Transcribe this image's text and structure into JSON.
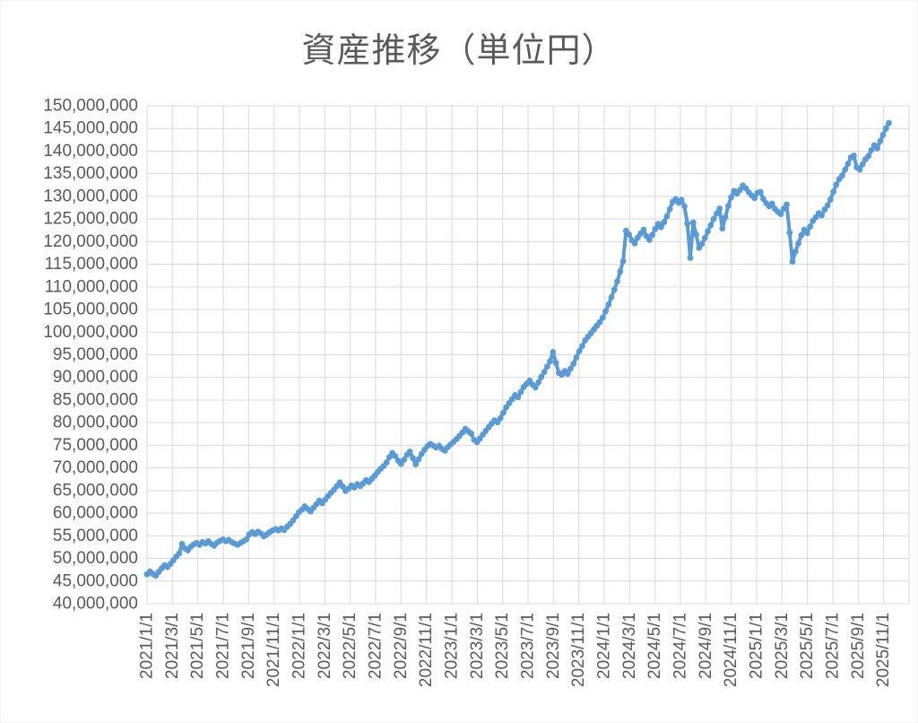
{
  "chart": {
    "title": "資産推移（単位円）"
  },
  "colors": {
    "series": "#5B9BD5",
    "grid": "#D9D9D9",
    "text": "#595959",
    "background": "#FFFFFF"
  },
  "chart_data": {
    "type": "line",
    "title": "資産推移（単位円）",
    "unit": "JPY",
    "grid": true,
    "legend": false,
    "markers": true,
    "series_color": "#5B9BD5",
    "y_axis": {
      "min": 40000000,
      "max": 150000000,
      "step": 5000000,
      "tick_labels": [
        "150,000,000",
        "145,000,000",
        "140,000,000",
        "135,000,000",
        "130,000,000",
        "125,000,000",
        "120,000,000",
        "115,000,000",
        "110,000,000",
        "105,000,000",
        "100,000,000",
        "95,000,000",
        "90,000,000",
        "85,000,000",
        "80,000,000",
        "75,000,000",
        "70,000,000",
        "65,000,000",
        "60,000,000",
        "55,000,000",
        "50,000,000",
        "45,000,000",
        "40,000,000"
      ]
    },
    "x_axis": {
      "tick_interval_months": 2,
      "months_total": 60,
      "tick_labels": [
        "2021/1/1",
        "2021/3/1",
        "2021/5/1",
        "2021/7/1",
        "2021/9/1",
        "2021/11/1",
        "2022/1/1",
        "2022/3/1",
        "2022/5/1",
        "2022/7/1",
        "2022/9/1",
        "2022/11/1",
        "2023/1/1",
        "2023/3/1",
        "2023/5/1",
        "2023/7/1",
        "2023/9/1",
        "2023/11/1",
        "2024/1/1",
        "2024/3/1",
        "2024/5/1",
        "2024/7/1",
        "2024/9/1",
        "2024/11/1",
        "2025/1/1",
        "2025/3/1",
        "2025/5/1",
        "2025/7/1",
        "2025/9/1",
        "2025/11/1"
      ]
    },
    "series": [
      {
        "start_label": "2021/1/1",
        "interval": "weekly",
        "values_million_jpy": [
          46.5,
          47.1,
          46.6,
          46.2,
          47.0,
          47.8,
          48.5,
          48.1,
          48.8,
          49.6,
          50.4,
          51.1,
          53.2,
          52.2,
          51.8,
          52.6,
          53.1,
          53.4,
          53.0,
          53.6,
          53.3,
          53.8,
          53.2,
          52.8,
          53.5,
          53.9,
          54.2,
          53.8,
          54.1,
          53.6,
          53.3,
          53.0,
          53.4,
          53.8,
          54.2,
          55.3,
          55.8,
          55.4,
          55.9,
          55.5,
          54.9,
          55.3,
          55.8,
          56.2,
          56.5,
          56.2,
          56.6,
          56.3,
          57.0,
          57.6,
          58.4,
          59.3,
          60.2,
          60.8,
          61.5,
          60.9,
          60.4,
          61.2,
          62.0,
          62.8,
          62.2,
          63.0,
          63.8,
          64.5,
          65.2,
          66.0,
          66.8,
          65.9,
          64.9,
          65.4,
          66.1,
          65.7,
          66.4,
          66.0,
          66.6,
          67.3,
          66.9,
          67.6,
          68.3,
          69.1,
          69.8,
          70.4,
          71.2,
          72.4,
          73.3,
          72.6,
          71.6,
          70.9,
          71.8,
          72.9,
          73.6,
          72.2,
          70.8,
          71.9,
          73.1,
          74.0,
          74.8,
          75.3,
          74.9,
          74.5,
          74.9,
          74.2,
          73.8,
          74.6,
          75.2,
          75.8,
          76.4,
          77.1,
          77.8,
          78.6,
          78.1,
          77.6,
          76.2,
          75.7,
          76.5,
          77.4,
          78.2,
          79.0,
          79.8,
          80.5,
          80.1,
          81.0,
          82.2,
          83.4,
          84.3,
          85.2,
          86.1,
          85.6,
          86.8,
          87.9,
          88.6,
          89.3,
          88.4,
          87.8,
          88.9,
          90.1,
          91.2,
          92.4,
          93.6,
          95.6,
          93.2,
          91.0,
          90.6,
          91.4,
          90.8,
          91.9,
          93.0,
          94.4,
          95.8,
          96.9,
          98.2,
          99.0,
          99.8,
          100.6,
          101.4,
          102.2,
          103.2,
          104.6,
          106.1,
          107.7,
          109.4,
          111.2,
          113.4,
          115.7,
          122.4,
          121.6,
          120.3,
          119.6,
          120.9,
          121.8,
          122.6,
          121.2,
          120.4,
          121.5,
          122.8,
          123.9,
          123.2,
          124.3,
          125.6,
          127.2,
          128.8,
          129.4,
          128.6,
          129.2,
          127.8,
          124.0,
          116.4,
          124.2,
          121.6,
          118.6,
          119.5,
          120.8,
          122.3,
          123.6,
          125.0,
          126.2,
          127.3,
          122.9,
          125.4,
          127.9,
          129.8,
          131.2,
          130.6,
          131.4,
          132.4,
          131.8,
          130.9,
          130.2,
          129.6,
          130.8,
          131.0,
          129.4,
          128.5,
          127.8,
          128.4,
          127.2,
          126.6,
          126.1,
          127.3,
          128.2,
          122.0,
          115.6,
          117.8,
          119.6,
          121.4,
          122.6,
          121.9,
          123.3,
          124.6,
          125.4,
          126.3,
          125.8,
          127.1,
          128.0,
          129.3,
          131.0,
          132.6,
          133.8,
          134.6,
          135.9,
          137.2,
          138.6,
          139.0,
          136.4,
          135.9,
          137.1,
          138.2,
          138.9,
          140.2,
          141.3,
          140.6,
          142.2,
          143.6,
          145.0,
          146.2
        ]
      }
    ]
  }
}
